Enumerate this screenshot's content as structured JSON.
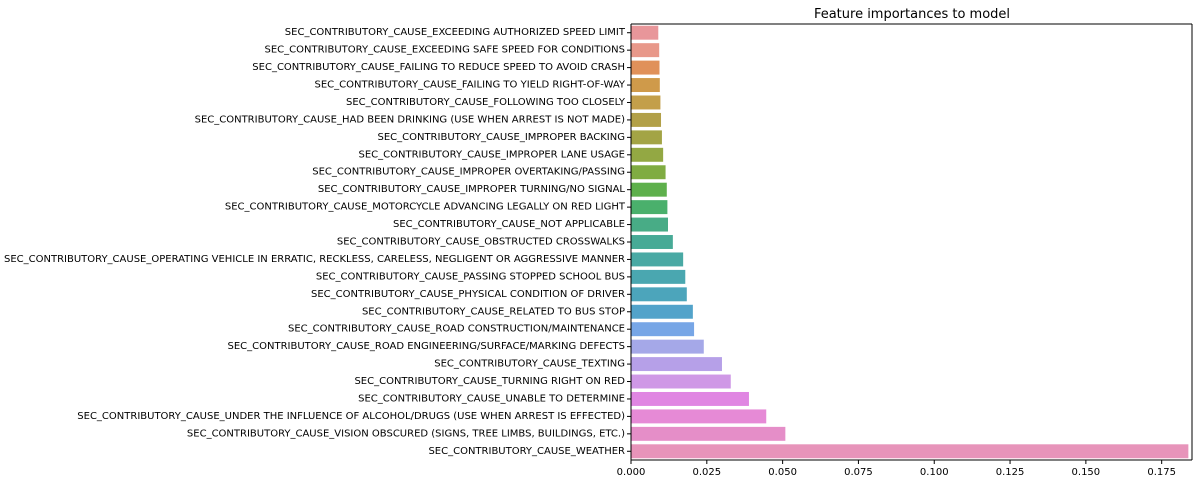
{
  "chart_data": {
    "type": "bar",
    "orientation": "horizontal",
    "title": "Feature importances to model",
    "xlabel": "",
    "ylabel": "",
    "xlim": [
      0,
      0.185
    ],
    "xticks": [
      "0.000",
      "0.025",
      "0.050",
      "0.075",
      "0.100",
      "0.125",
      "0.150",
      "0.175"
    ],
    "grid": false,
    "categories": [
      "SEC_CONTRIBUTORY_CAUSE_EXCEEDING AUTHORIZED SPEED LIMIT",
      "SEC_CONTRIBUTORY_CAUSE_EXCEEDING SAFE SPEED FOR CONDITIONS",
      "SEC_CONTRIBUTORY_CAUSE_FAILING TO REDUCE SPEED TO AVOID CRASH",
      "SEC_CONTRIBUTORY_CAUSE_FAILING TO YIELD RIGHT-OF-WAY",
      "SEC_CONTRIBUTORY_CAUSE_FOLLOWING TOO CLOSELY",
      "SEC_CONTRIBUTORY_CAUSE_HAD BEEN DRINKING (USE WHEN ARREST IS NOT MADE)",
      "SEC_CONTRIBUTORY_CAUSE_IMPROPER BACKING",
      "SEC_CONTRIBUTORY_CAUSE_IMPROPER LANE USAGE",
      "SEC_CONTRIBUTORY_CAUSE_IMPROPER OVERTAKING/PASSING",
      "SEC_CONTRIBUTORY_CAUSE_IMPROPER TURNING/NO SIGNAL",
      "SEC_CONTRIBUTORY_CAUSE_MOTORCYCLE ADVANCING LEGALLY ON RED LIGHT",
      "SEC_CONTRIBUTORY_CAUSE_NOT APPLICABLE",
      "SEC_CONTRIBUTORY_CAUSE_OBSTRUCTED CROSSWALKS",
      "SEC_CONTRIBUTORY_CAUSE_OPERATING VEHICLE IN ERRATIC, RECKLESS, CARELESS, NEGLIGENT OR AGGRESSIVE MANNER",
      "SEC_CONTRIBUTORY_CAUSE_PASSING STOPPED SCHOOL BUS",
      "SEC_CONTRIBUTORY_CAUSE_PHYSICAL CONDITION OF DRIVER",
      "SEC_CONTRIBUTORY_CAUSE_RELATED TO BUS STOP",
      "SEC_CONTRIBUTORY_CAUSE_ROAD CONSTRUCTION/MAINTENANCE",
      "SEC_CONTRIBUTORY_CAUSE_ROAD ENGINEERING/SURFACE/MARKING DEFECTS",
      "SEC_CONTRIBUTORY_CAUSE_TEXTING",
      "SEC_CONTRIBUTORY_CAUSE_TURNING RIGHT ON RED",
      "SEC_CONTRIBUTORY_CAUSE_UNABLE TO DETERMINE",
      "SEC_CONTRIBUTORY_CAUSE_UNDER THE INFLUENCE OF ALCOHOL/DRUGS (USE WHEN ARREST IS EFFECTED)",
      "SEC_CONTRIBUTORY_CAUSE_VISION OBSCURED (SIGNS, TREE LIMBS, BUILDINGS, ETC.)",
      "SEC_CONTRIBUTORY_CAUSE_WEATHER"
    ],
    "values": [
      0.009,
      0.0093,
      0.0094,
      0.0095,
      0.0097,
      0.0099,
      0.0102,
      0.0106,
      0.0114,
      0.0118,
      0.012,
      0.0122,
      0.0138,
      0.0172,
      0.0179,
      0.0184,
      0.0204,
      0.0208,
      0.024,
      0.03,
      0.0329,
      0.0389,
      0.0446,
      0.0509,
      0.1838
    ],
    "colors": [
      "#e8969a",
      "#e8988a",
      "#e0915a",
      "#cf9a4a",
      "#c39f4a",
      "#b2a048",
      "#a3a445",
      "#93a843",
      "#80ac42",
      "#5eb04c",
      "#4ab06c",
      "#48ac86",
      "#47aa96",
      "#49a9a4",
      "#4aa7b0",
      "#4ca5bb",
      "#52a3ca",
      "#77a6e6",
      "#a5a8e8",
      "#b6a0e8",
      "#cf98e6",
      "#e086e2",
      "#e68ad6",
      "#e58ec8",
      "#e794ba"
    ]
  }
}
